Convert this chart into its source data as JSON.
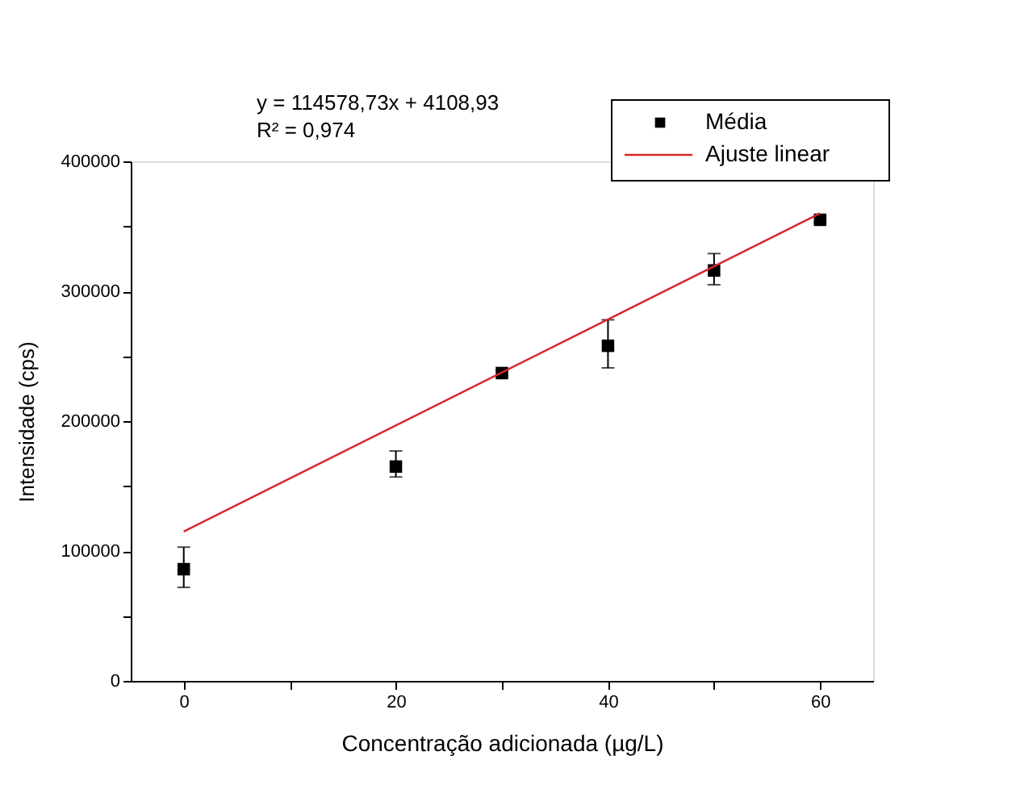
{
  "chart_data": {
    "type": "scatter",
    "xlabel": "Concentração adicionada (µg/L)",
    "ylabel": "Intensidade (cps)",
    "annotations": [
      "y = 114578,73x + 4108,93",
      "R² = 0,974"
    ],
    "xlim": [
      -5,
      65
    ],
    "xticks": [
      0,
      {
        "value": 10,
        "label": null
      },
      20,
      {
        "value": 30,
        "label": null
      },
      40,
      {
        "value": 50,
        "label": null
      },
      60
    ],
    "ylim": [
      0,
      400000
    ],
    "yticks": [
      0,
      {
        "value": 50000,
        "label": null
      },
      100000,
      {
        "value": 150000,
        "label": null
      },
      200000,
      {
        "value": 250000,
        "label": null
      },
      300000,
      {
        "value": 350000,
        "label": null
      },
      400000
    ],
    "grid": false,
    "legend": "top right",
    "series": [
      {
        "name": "Média",
        "marker": "square",
        "color": "#000000",
        "x": [
          0,
          20,
          30,
          40,
          50,
          60
        ],
        "values": [
          86000,
          165000,
          237000,
          258000,
          316000,
          355000
        ],
        "errors": [
          [
            72000,
            103000
          ],
          [
            157000,
            177000
          ],
          [
            235000,
            239000
          ],
          [
            241000,
            278000
          ],
          [
            305000,
            329000
          ],
          [
            353000,
            358000
          ]
        ]
      },
      {
        "name": "Ajuste linear",
        "type": "line",
        "line_style": "solid",
        "color": "#d62728",
        "x": [
          0,
          60
        ],
        "values": [
          115000,
          360000
        ]
      }
    ]
  }
}
